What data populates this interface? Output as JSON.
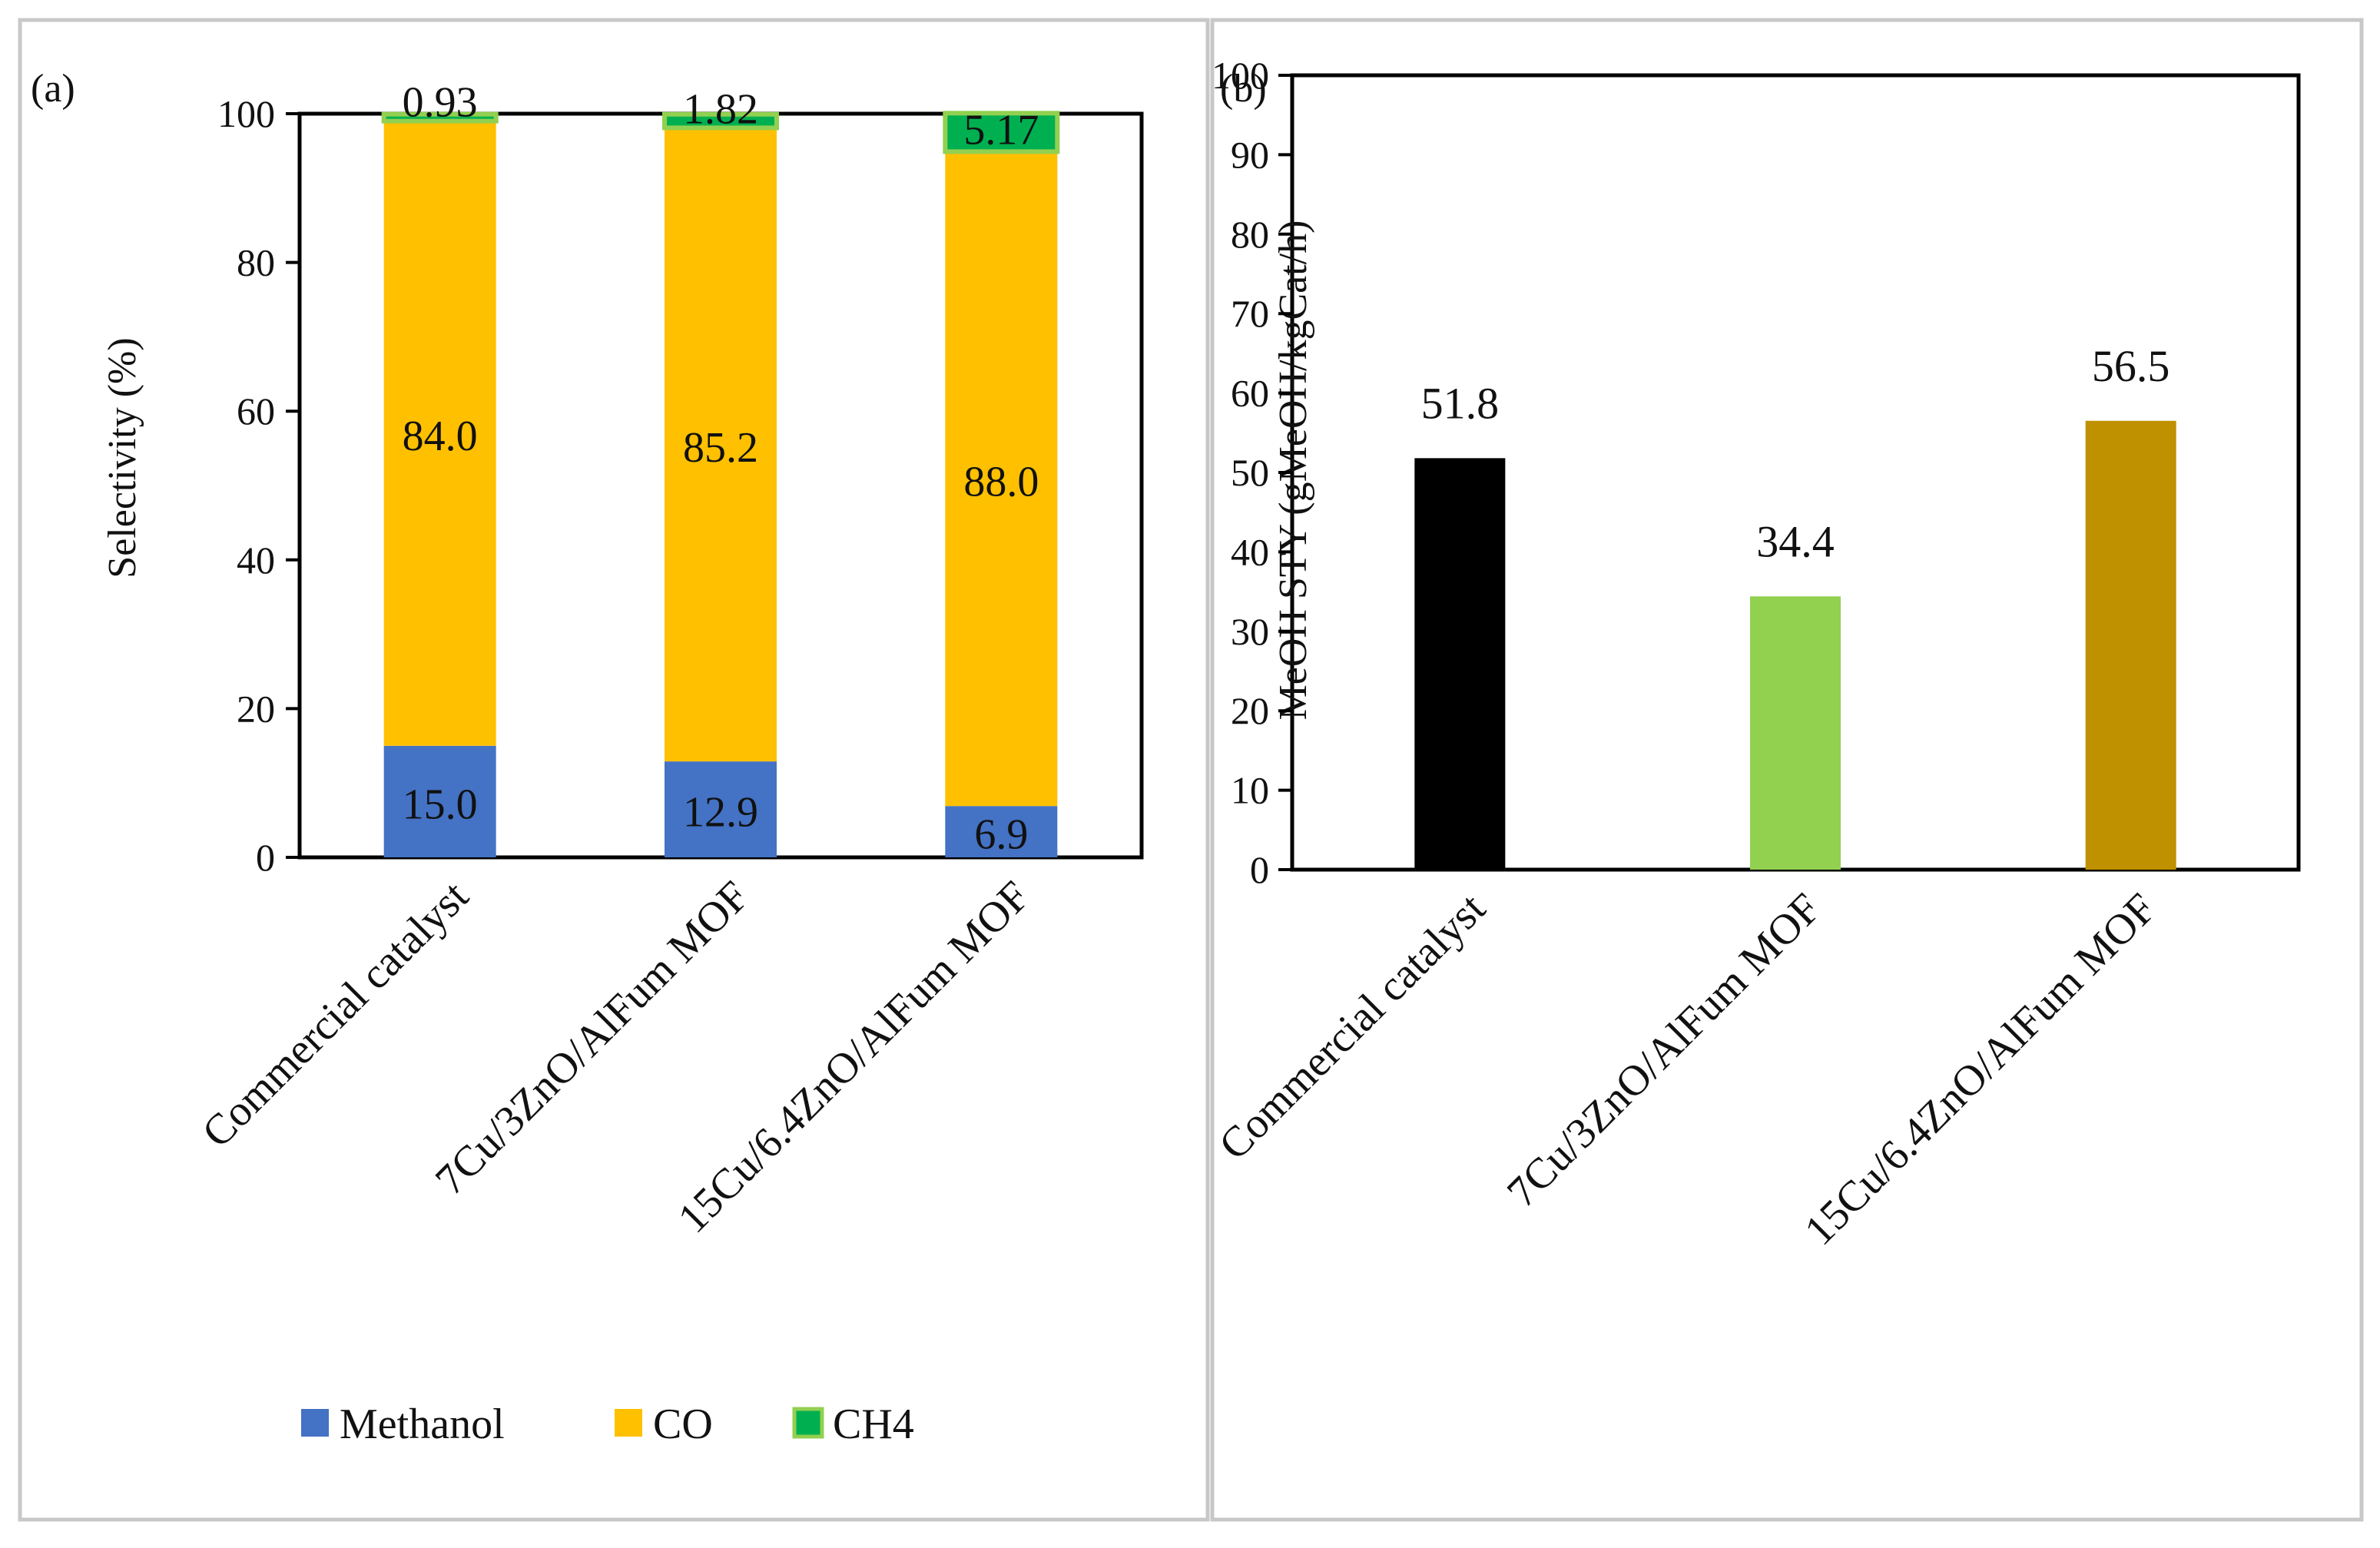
{
  "chart_data": [
    {
      "panel_label": "(a)",
      "type": "bar",
      "stacked": true,
      "categories": [
        "Commercial catalyst",
        "7Cu/3ZnO/AlFum MOF",
        "15Cu/6.4ZnO/AlFum MOF"
      ],
      "series": [
        {
          "name": "Methanol",
          "values": [
            15.0,
            12.9,
            6.9
          ],
          "labels": [
            "15.0",
            "12.9",
            "6.9"
          ],
          "color": "#4472C4"
        },
        {
          "name": "CO",
          "values": [
            84.0,
            85.2,
            88.0
          ],
          "labels": [
            "84.0",
            "85.2",
            "88.0"
          ],
          "color": "#FFC000"
        },
        {
          "name": "CH4",
          "values": [
            0.93,
            1.82,
            5.17
          ],
          "labels": [
            "0.93",
            "1.82",
            "5.17"
          ],
          "color": "#00B050",
          "stroke": "#92D050"
        }
      ],
      "title": "",
      "xlabel": "",
      "ylabel": "Selectivity (%)",
      "ylim": [
        0,
        100
      ],
      "yticks": [
        0,
        20,
        40,
        60,
        80,
        100
      ],
      "grid": false,
      "legend_position": "bottom"
    },
    {
      "panel_label": "(b)",
      "type": "bar",
      "stacked": false,
      "categories": [
        "Commercial catalyst",
        "7Cu/3ZnO/AlFum MOF",
        "15Cu/6.4ZnO/AlFum MOF"
      ],
      "values": [
        51.8,
        34.4,
        56.5
      ],
      "labels": [
        "51.8",
        "34.4",
        "56.5"
      ],
      "colors": [
        "#000000",
        "#92D050",
        "#BF9000"
      ],
      "title": "",
      "xlabel": "",
      "ylabel": "MeOH STY (gMeOH/kgCat/h)",
      "ylim": [
        0,
        100
      ],
      "yticks": [
        0,
        10,
        20,
        30,
        40,
        50,
        60,
        70,
        80,
        90,
        100
      ],
      "grid": false
    }
  ]
}
